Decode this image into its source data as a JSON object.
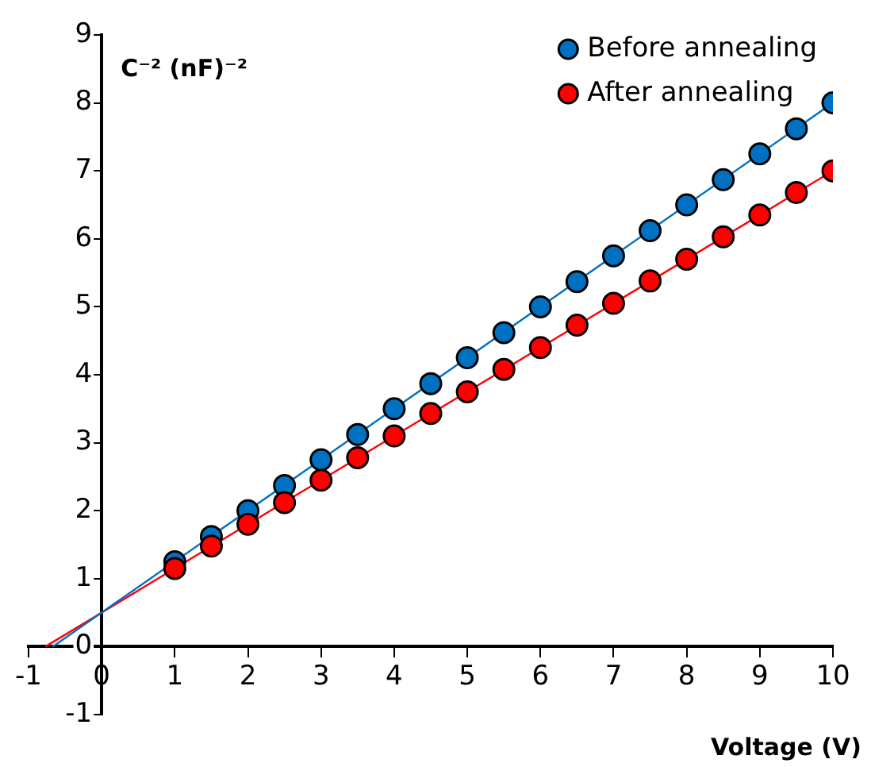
{
  "chart_data": {
    "type": "scatter",
    "xlabel": "Voltage (V)",
    "ylabel": "C⁻² (nF)⁻²",
    "xlim": [
      -1,
      10
    ],
    "ylim": [
      -1,
      9
    ],
    "xticks": [
      -1,
      0,
      1,
      2,
      3,
      4,
      5,
      6,
      7,
      8,
      9,
      10
    ],
    "yticks": [
      -1,
      0,
      1,
      2,
      3,
      4,
      5,
      6,
      7,
      8,
      9
    ],
    "grid": false,
    "legend": "top right",
    "marker": "circle",
    "series": [
      {
        "name": "Before annealing",
        "color": "#0070c0",
        "x": [
          1,
          1.5,
          2,
          2.5,
          3,
          3.5,
          4,
          4.5,
          5,
          5.5,
          6,
          6.5,
          7,
          7.5,
          8,
          8.5,
          9,
          9.5,
          10
        ],
        "values": [
          1.25,
          1.62,
          2.0,
          2.37,
          2.75,
          3.12,
          3.5,
          3.87,
          4.25,
          4.62,
          5.0,
          5.37,
          5.75,
          6.12,
          6.5,
          6.87,
          7.25,
          7.62,
          8.0
        ]
      },
      {
        "name": "After annealing",
        "color": "#ff0000",
        "x": [
          1,
          1.5,
          2,
          2.5,
          3,
          3.5,
          4,
          4.5,
          5,
          5.5,
          6,
          6.5,
          7,
          7.5,
          8,
          8.5,
          9,
          9.5,
          10
        ],
        "values": [
          1.15,
          1.48,
          1.8,
          2.12,
          2.45,
          2.78,
          3.1,
          3.43,
          3.75,
          4.08,
          4.4,
          4.73,
          5.05,
          5.38,
          5.7,
          6.03,
          6.35,
          6.68,
          7.0
        ]
      },
      {
        "type": "line",
        "color": "#0070c0",
        "marker": "none",
        "x": [
          -0.67,
          10
        ],
        "values": [
          0,
          8
        ]
      },
      {
        "type": "line",
        "color": "#ff0000",
        "marker": "none",
        "x": [
          -0.77,
          10
        ],
        "values": [
          0,
          7
        ]
      }
    ]
  }
}
